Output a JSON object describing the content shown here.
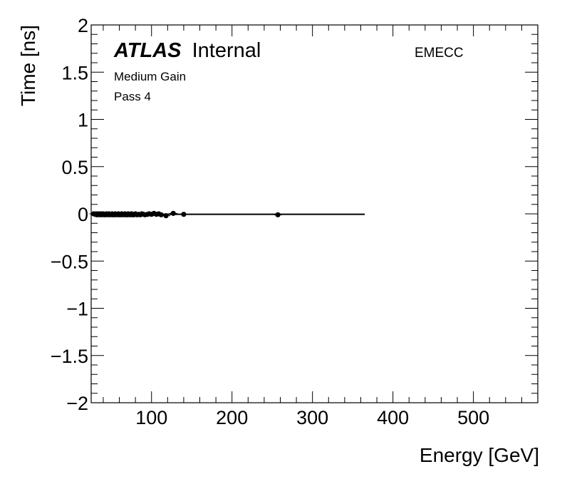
{
  "chart_data": {
    "type": "scatter",
    "title": "",
    "xlabel": "Energy [GeV]",
    "ylabel": "Time [ns]",
    "xlim": [
      25,
      580
    ],
    "ylim": [
      -2,
      2
    ],
    "x_ticks": [
      100,
      200,
      300,
      400,
      500
    ],
    "y_ticks": [
      -2,
      -1.5,
      -1,
      -0.5,
      0,
      0.5,
      1,
      1.5,
      2
    ],
    "y_tick_labels": [
      "−2",
      "−1.5",
      "−1",
      "−0.5",
      "0",
      "0.5",
      "1",
      "1.5",
      "2"
    ],
    "grid": false,
    "annotations": {
      "experiment": "ATLAS",
      "status": "Internal",
      "gain": "Medium Gain",
      "pass": "Pass 4",
      "region": "EMECC"
    },
    "fit_line": {
      "x": [
        25,
        365
      ],
      "y": [
        -0.005,
        -0.005
      ]
    },
    "series": [
      {
        "points": [
          [
            28,
            0.0
          ],
          [
            30,
            -0.005
          ],
          [
            31,
            0.0
          ],
          [
            32,
            -0.01
          ],
          [
            33,
            -0.005
          ],
          [
            34,
            0.0
          ],
          [
            35,
            -0.01
          ],
          [
            36,
            -0.005
          ],
          [
            37,
            0.0
          ],
          [
            38,
            -0.01
          ],
          [
            39,
            -0.005
          ],
          [
            40,
            0.0
          ],
          [
            41,
            -0.01
          ],
          [
            42,
            -0.005
          ],
          [
            43,
            -0.01
          ],
          [
            44,
            0.0
          ],
          [
            45,
            -0.005
          ],
          [
            46,
            -0.01
          ],
          [
            47,
            0.0
          ],
          [
            48,
            -0.005
          ],
          [
            49,
            -0.01
          ],
          [
            50,
            -0.005
          ],
          [
            51,
            0.0
          ],
          [
            52,
            -0.01
          ],
          [
            53,
            -0.005
          ],
          [
            54,
            -0.01
          ],
          [
            55,
            0.0
          ],
          [
            56,
            -0.005
          ],
          [
            57,
            -0.01
          ],
          [
            58,
            -0.005
          ],
          [
            59,
            0.0
          ],
          [
            60,
            -0.01
          ],
          [
            61,
            -0.005
          ],
          [
            62,
            -0.01
          ],
          [
            63,
            0.0
          ],
          [
            64,
            -0.005
          ],
          [
            65,
            -0.01
          ],
          [
            66,
            -0.005
          ],
          [
            67,
            0.0
          ],
          [
            68,
            -0.01
          ],
          [
            69,
            -0.005
          ],
          [
            70,
            -0.01
          ],
          [
            71,
            0.0
          ],
          [
            72,
            -0.005
          ],
          [
            73,
            -0.01
          ],
          [
            74,
            -0.005
          ],
          [
            75,
            0.0
          ],
          [
            76,
            -0.01
          ],
          [
            77,
            -0.005
          ],
          [
            78,
            -0.01
          ],
          [
            79,
            -0.005
          ],
          [
            80,
            0.0
          ],
          [
            82,
            -0.01
          ],
          [
            84,
            -0.005
          ],
          [
            86,
            -0.01
          ],
          [
            88,
            0.0
          ],
          [
            90,
            -0.005
          ],
          [
            92,
            -0.01
          ],
          [
            95,
            -0.005
          ],
          [
            97,
            0.0
          ],
          [
            100,
            -0.005
          ],
          [
            103,
            0.005
          ],
          [
            106,
            -0.005
          ],
          [
            109,
            0.0
          ],
          [
            112,
            -0.01
          ],
          [
            118,
            -0.02
          ],
          [
            127,
            0.005
          ],
          [
            140,
            -0.005
          ],
          [
            257,
            -0.01
          ]
        ]
      }
    ]
  }
}
